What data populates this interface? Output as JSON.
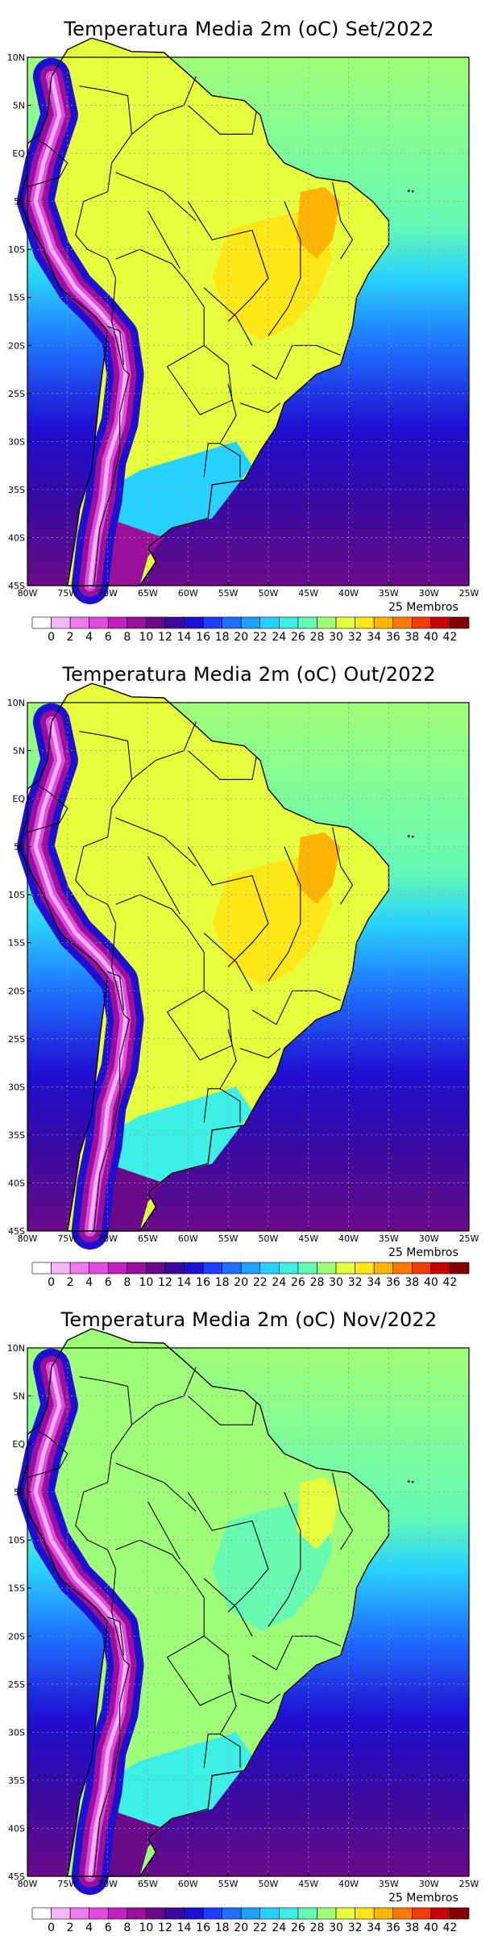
{
  "colorbar": {
    "labels": [
      "0",
      "2",
      "4",
      "6",
      "8",
      "10",
      "12",
      "14",
      "16",
      "18",
      "20",
      "22",
      "24",
      "26",
      "28",
      "30",
      "32",
      "34",
      "36",
      "38",
      "40",
      "42"
    ],
    "colors": [
      "#ffffff",
      "#f5b6f5",
      "#ee7aee",
      "#e14ae1",
      "#c21fc2",
      "#9a109a",
      "#6a0a8a",
      "#3a0aa0",
      "#1e0fd2",
      "#1e3cff",
      "#1e6eff",
      "#1ea0ff",
      "#26d2ff",
      "#3cf0e6",
      "#64fab4",
      "#a0ff78",
      "#e6ff3c",
      "#ffe614",
      "#ffb400",
      "#ff7800",
      "#f03c00",
      "#c80000",
      "#820000"
    ]
  },
  "lon_labels": [
    "80W",
    "75W",
    "70W",
    "65W",
    "60W",
    "55W",
    "50W",
    "45W",
    "40W",
    "35W",
    "30W",
    "25W"
  ],
  "lat_labels": [
    "10N",
    "5N",
    "EQ",
    "5S",
    "10S",
    "15S",
    "20S",
    "25S",
    "30S",
    "35S",
    "40S",
    "45S"
  ],
  "panels": [
    {
      "title": "Temperatura Media 2m (oC) Set/2022",
      "members": "25 Membros"
    },
    {
      "title": "Temperatura Media 2m (oC) Out/2022",
      "members": "25 Membros"
    },
    {
      "title": "Temperatura Media 2m (oC) Nov/2022",
      "members": "25 Membros"
    }
  ]
}
